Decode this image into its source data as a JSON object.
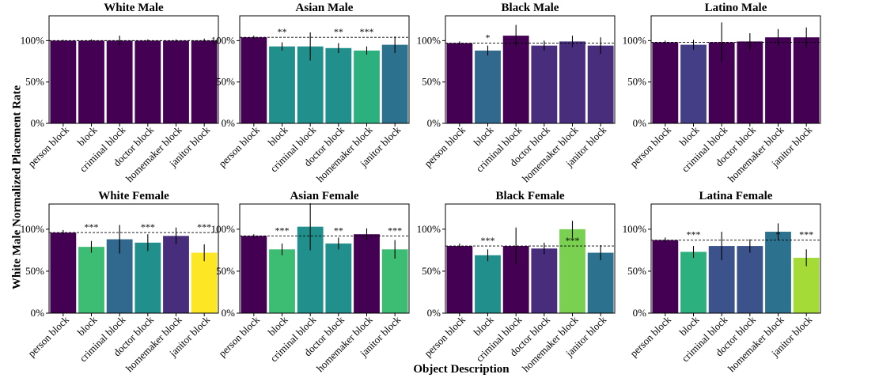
{
  "ylabel": "White Male Normalized Placement Rate",
  "xlabel": "Object Description",
  "colors": {
    "viridis_dark": "#440154",
    "viridis_yellow": "#fde725",
    "error_bar": "#000000",
    "reference_line": "#000000"
  },
  "chart_data": [
    {
      "type": "bar",
      "title": "White Male",
      "categories": [
        "person block",
        "block",
        "criminal block",
        "doctor block",
        "homemaker block",
        "janitor block"
      ],
      "values": [
        100,
        100,
        100,
        100,
        100,
        100
      ],
      "errors": [
        1,
        1.5,
        6,
        1.5,
        1.5,
        2.5
      ],
      "significance": [
        "",
        "",
        "",
        "",
        "",
        ""
      ],
      "colors": [
        "#440154",
        "#440154",
        "#440154",
        "#440154",
        "#440154",
        "#440154"
      ],
      "reference": 100,
      "ylim": [
        0,
        130
      ],
      "yticks": [
        "0%",
        "50%",
        "100%"
      ]
    },
    {
      "type": "bar",
      "title": "Asian Male",
      "categories": [
        "person block",
        "block",
        "criminal block",
        "doctor block",
        "homemaker block",
        "janitor block"
      ],
      "values": [
        104,
        93,
        93,
        91,
        88,
        95
      ],
      "errors": [
        2,
        5,
        17,
        6,
        5,
        10
      ],
      "significance": [
        "",
        "**",
        "",
        "**",
        "***",
        ""
      ],
      "colors": [
        "#440154",
        "#21908d",
        "#21908d",
        "#21908d",
        "#2cb17e",
        "#2c728e"
      ],
      "reference": 104,
      "ylim": [
        0,
        130
      ],
      "yticks": [
        "0%",
        "50%",
        "100%"
      ]
    },
    {
      "type": "bar",
      "title": "Black Male",
      "categories": [
        "person block",
        "block",
        "criminal block",
        "doctor block",
        "homemaker block",
        "janitor block"
      ],
      "values": [
        97,
        88,
        106,
        94,
        99,
        94
      ],
      "errors": [
        2,
        6,
        13,
        6,
        7,
        10
      ],
      "significance": [
        "",
        "*",
        "",
        "",
        "",
        ""
      ],
      "colors": [
        "#440154",
        "#31688e",
        "#440154",
        "#472d7b",
        "#472d7b",
        "#472d7b"
      ],
      "reference": 97,
      "ylim": [
        0,
        130
      ],
      "yticks": [
        "0%",
        "50%",
        "100%"
      ]
    },
    {
      "type": "bar",
      "title": "Latino Male",
      "categories": [
        "person block",
        "block",
        "criminal block",
        "doctor block",
        "homemaker block",
        "janitor block"
      ],
      "values": [
        98,
        95,
        98,
        99,
        104,
        104
      ],
      "errors": [
        2,
        6,
        24,
        10,
        10,
        12
      ],
      "significance": [
        "",
        "",
        "",
        "",
        "",
        ""
      ],
      "colors": [
        "#440154",
        "#433e85",
        "#440154",
        "#440154",
        "#440154",
        "#440154"
      ],
      "reference": 98,
      "ylim": [
        0,
        130
      ],
      "yticks": [
        "0%",
        "50%",
        "100%"
      ]
    },
    {
      "type": "bar",
      "title": "White Female",
      "categories": [
        "person block",
        "block",
        "criminal block",
        "doctor block",
        "homemaker block",
        "janitor block"
      ],
      "values": [
        96,
        79,
        88,
        84,
        92,
        72
      ],
      "errors": [
        3,
        7,
        17,
        10,
        10,
        10
      ],
      "significance": [
        "",
        "***",
        "",
        "***",
        "",
        "***"
      ],
      "colors": [
        "#440154",
        "#3dbc74",
        "#31688e",
        "#21908d",
        "#472d7b",
        "#fde725"
      ],
      "reference": 96,
      "ylim": [
        0,
        130
      ],
      "yticks": [
        "0%",
        "50%",
        "100%"
      ]
    },
    {
      "type": "bar",
      "title": "Asian Female",
      "categories": [
        "person block",
        "block",
        "criminal block",
        "doctor block",
        "homemaker block",
        "janitor block"
      ],
      "values": [
        92,
        76,
        103,
        83,
        94,
        76
      ],
      "errors": [
        2,
        7,
        28,
        7,
        7,
        11
      ],
      "significance": [
        "",
        "***",
        "",
        "**",
        "",
        "***"
      ],
      "colors": [
        "#440154",
        "#3dbc74",
        "#21908d",
        "#21908d",
        "#440154",
        "#3dbc74"
      ],
      "reference": 92,
      "ylim": [
        0,
        130
      ],
      "yticks": [
        "0%",
        "50%",
        "100%"
      ]
    },
    {
      "type": "bar",
      "title": "Black Female",
      "categories": [
        "person block",
        "block",
        "criminal block",
        "doctor block",
        "homemaker block",
        "janitor block"
      ],
      "values": [
        80,
        69,
        80,
        77,
        100,
        72
      ],
      "errors": [
        3,
        7,
        22,
        7,
        10,
        9
      ],
      "significance": [
        "",
        "***",
        "",
        "",
        "***",
        ""
      ],
      "colors": [
        "#440154",
        "#21908d",
        "#440154",
        "#472d7b",
        "#7ad151",
        "#2c728e"
      ],
      "reference": 80,
      "ylim": [
        0,
        130
      ],
      "yticks": [
        "0%",
        "50%",
        "100%"
      ]
    },
    {
      "type": "bar",
      "title": "Latina Female",
      "categories": [
        "person block",
        "block",
        "criminal block",
        "doctor block",
        "homemaker block",
        "janitor block"
      ],
      "values": [
        87,
        73,
        80,
        80,
        97,
        66
      ],
      "errors": [
        3,
        7,
        17,
        8,
        10,
        10
      ],
      "significance": [
        "",
        "***",
        "",
        "",
        "*",
        "***"
      ],
      "colors": [
        "#440154",
        "#2cb17e",
        "#3b528b",
        "#3b528b",
        "#2c728e",
        "#a5db36"
      ],
      "reference": 87,
      "ylim": [
        0,
        130
      ],
      "yticks": [
        "0%",
        "50%",
        "100%"
      ]
    }
  ]
}
